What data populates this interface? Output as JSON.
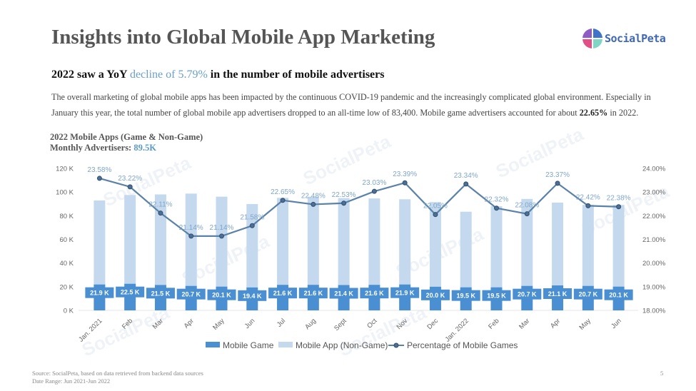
{
  "header": {
    "title": "Insights into Global Mobile App Marketing",
    "logo_text": "SocialPeta"
  },
  "subtitle": {
    "prefix": "2022 saw a YoY ",
    "highlight": "decline of 5.79%",
    "suffix": " in the number of mobile advertisers"
  },
  "paragraph": {
    "text": "The overall marketing of global mobile apps has been impacted by the continuous COVID-19 pandemic and the increasingly complicated global environment. Especially in January this year, the total number of global mobile app advertisers dropped to an all-time low of 83,400. Mobile game advertisers accounted for about ",
    "bold": "22.65%",
    "end": " in 2022."
  },
  "chart_header": {
    "line1": "2022 Mobile Apps (Game & Non-Game)",
    "line2_label": "Monthly Advertisers: ",
    "line2_value": "89.5K"
  },
  "colors": {
    "game": "#4a8fd1",
    "non_game": "#c4d9ee",
    "line": "#5a82a8",
    "pct_label": "#7fa6c9",
    "highlight": "#6aa0c7"
  },
  "chart_data": {
    "type": "bar",
    "subtype": "stacked bar + line (dual axis)",
    "categories": [
      "Jan. 2021",
      "Feb",
      "Mar",
      "Apr",
      "May",
      "Jun",
      "Jul",
      "Aug",
      "Sept",
      "Oct",
      "Nov",
      "Dec",
      "Jan. 2022",
      "Feb",
      "Mar",
      "Apr",
      "May",
      "Jun"
    ],
    "series": [
      {
        "name": "Mobile Game",
        "type": "bar",
        "axis": "left",
        "values": [
          21.9,
          22.5,
          21.5,
          20.7,
          20.1,
          19.4,
          21.6,
          21.6,
          21.4,
          21.6,
          21.9,
          20.0,
          19.5,
          19.5,
          20.7,
          21.1,
          20.7,
          20.1
        ],
        "labels": [
          "21.9 K",
          "22.5 K",
          "21.5 K",
          "20.7 K",
          "20.1 K",
          "19.4 K",
          "21.6 K",
          "21.6 K",
          "21.4 K",
          "21.6 K",
          "21.9 K",
          "20.0 K",
          "19.5 K",
          "19.5 K",
          "20.7 K",
          "21.1 K",
          "20.7 K",
          "20.1 K"
        ]
      },
      {
        "name": "Mobile App (Non-Game)",
        "type": "bar",
        "axis": "left",
        "values": [
          71,
          75,
          76.5,
          78,
          76,
          70.5,
          73.5,
          74.5,
          73.5,
          73,
          72,
          71.5,
          63.9,
          68.5,
          73.5,
          70,
          68.5,
          69
        ]
      },
      {
        "name": "Percentage of Mobile Games",
        "type": "line",
        "axis": "right",
        "values": [
          23.58,
          23.22,
          22.11,
          21.14,
          21.14,
          21.58,
          22.65,
          22.48,
          22.53,
          23.03,
          23.39,
          22.05,
          23.34,
          22.32,
          22.08,
          23.37,
          22.42,
          22.38
        ],
        "labels": [
          "23.58%",
          "23.22%",
          "22.11%",
          "21.14%",
          "21.14%",
          "21.58%",
          "22.65%",
          "22.48%",
          "22.53%",
          "23.03%",
          "23.39%",
          "22.05%",
          "23.34%",
          "22.32%",
          "22.08%",
          "23.37%",
          "22.42%",
          "22.38%"
        ]
      }
    ],
    "y_left": {
      "ticks": [
        "0 K",
        "20 K",
        "40 K",
        "60 K",
        "80 K",
        "100 K",
        "120 K"
      ],
      "range": [
        0,
        120
      ],
      "unit": "K"
    },
    "y_right": {
      "ticks": [
        "18.00%",
        "19.00%",
        "20.00%",
        "21.00%",
        "22.00%",
        "23.00%",
        "24.00%"
      ],
      "range": [
        18,
        24
      ],
      "unit": "%"
    },
    "title": "",
    "xlabel": "",
    "ylabel": "",
    "grid": false,
    "legend_position": "bottom-center",
    "legend": [
      "Mobile Game",
      "Mobile App (Non-Game)",
      "Percentage of Mobile Games"
    ]
  },
  "footer": {
    "source": "Source: SocialPeta, based on data retrieved from backend data sources",
    "date_range": "Date Range: Jun 2021-Jun 2022",
    "page_number": "5"
  },
  "watermark": "SocialPeta"
}
